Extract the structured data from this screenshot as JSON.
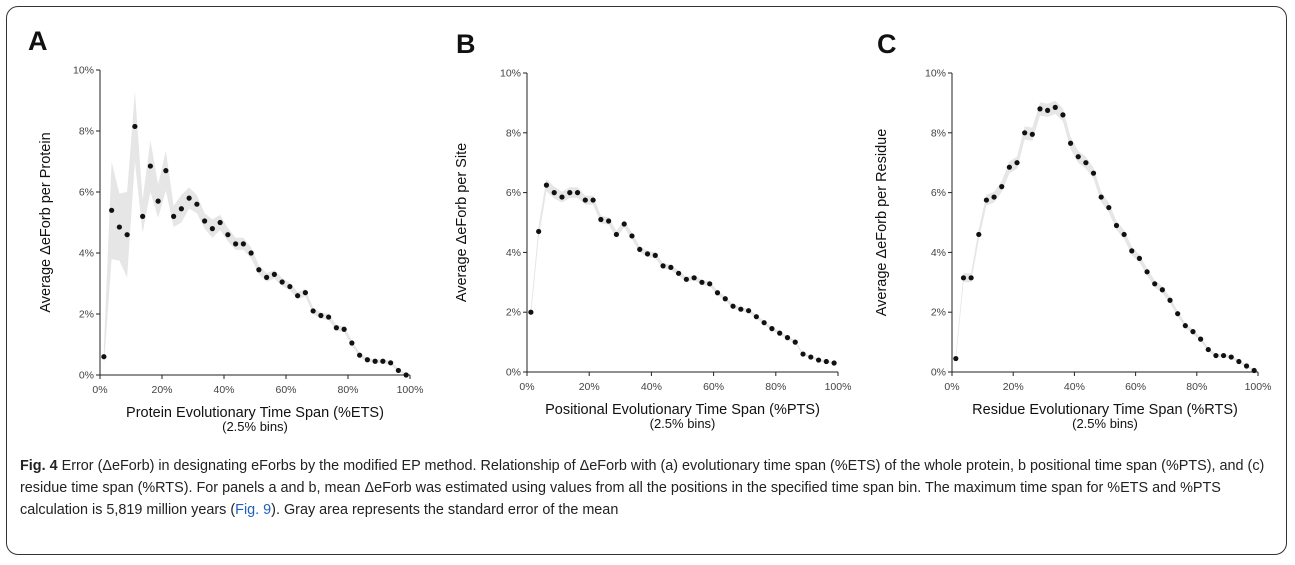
{
  "caption": {
    "label": "Fig. 4",
    "pre_link": " Error (ΔeForb) in designating eForbs by the modified EP method. Relationship of ΔeForb with (a) evolutionary time span (%ETS) of the whole protein, b positional time span (%PTS), and (c) residue time span (%RTS). For panels a and b, mean ΔeForb was estimated using values from all the positions in the specified time span bin. The maximum time span for %ETS and %PTS calculation is 5,819 million years (",
    "link_text": "Fig. 9",
    "post_link": "). Gray area represents the standard error of the mean"
  },
  "chart_data": [
    {
      "type": "scatter",
      "panel_label": "A",
      "xlabel": "Protein Evolutionary Time Span (%ETS)",
      "xlabel_sub": "(2.5% bins)",
      "ylabel": "Average ΔeForb per Protein",
      "xlim": [
        0,
        100
      ],
      "ylim": [
        0,
        10
      ],
      "x_ticks": [
        "0%",
        "20%",
        "40%",
        "60%",
        "80%",
        "100%"
      ],
      "y_ticks": [
        "0%",
        "2%",
        "4%",
        "6%",
        "8%",
        "10%"
      ],
      "x": [
        1.25,
        3.75,
        6.25,
        8.75,
        11.25,
        13.75,
        16.25,
        18.75,
        21.25,
        23.75,
        26.25,
        28.75,
        31.25,
        33.75,
        36.25,
        38.75,
        41.25,
        43.75,
        46.25,
        48.75,
        51.25,
        53.75,
        56.25,
        58.75,
        61.25,
        63.75,
        66.25,
        68.75,
        71.25,
        73.75,
        76.25,
        78.75,
        81.25,
        83.75,
        86.25,
        88.75,
        91.25,
        93.75,
        96.25,
        98.75
      ],
      "y": [
        0.6,
        5.4,
        4.85,
        4.6,
        8.15,
        5.2,
        6.85,
        5.7,
        6.7,
        5.2,
        5.45,
        5.8,
        5.6,
        5.05,
        4.8,
        5.0,
        4.6,
        4.3,
        4.3,
        4.0,
        3.45,
        3.2,
        3.3,
        3.05,
        2.9,
        2.6,
        2.7,
        2.1,
        1.95,
        1.9,
        1.55,
        1.5,
        1.05,
        0.65,
        0.5,
        0.45,
        0.45,
        0.4,
        0.15,
        0.0
      ],
      "se": [
        0.3,
        1.6,
        1.1,
        1.4,
        1.15,
        0.55,
        0.85,
        0.55,
        0.65,
        0.35,
        0.45,
        0.35,
        0.3,
        0.25,
        0.3,
        0.25,
        0.22,
        0.2,
        0.2,
        0.18,
        0.15,
        0.14,
        0.14,
        0.13,
        0.12,
        0.12,
        0.12,
        0.1,
        0.1,
        0.1,
        0.09,
        0.09,
        0.08,
        0.07,
        0.06,
        0.06,
        0.06,
        0.06,
        0.05,
        0.04
      ]
    },
    {
      "type": "scatter",
      "panel_label": "B",
      "xlabel": "Positional Evolutionary Time Span (%PTS)",
      "xlabel_sub": "(2.5% bins)",
      "ylabel": "Average ΔeForb per Site",
      "xlim": [
        0,
        100
      ],
      "ylim": [
        0,
        10
      ],
      "x_ticks": [
        "0%",
        "20%",
        "40%",
        "60%",
        "80%",
        "100%"
      ],
      "y_ticks": [
        "0%",
        "2%",
        "4%",
        "6%",
        "8%",
        "10%"
      ],
      "x": [
        1.25,
        3.75,
        6.25,
        8.75,
        11.25,
        13.75,
        16.25,
        18.75,
        21.25,
        23.75,
        26.25,
        28.75,
        31.25,
        33.75,
        36.25,
        38.75,
        41.25,
        43.75,
        46.25,
        48.75,
        51.25,
        53.75,
        56.25,
        58.75,
        61.25,
        63.75,
        66.25,
        68.75,
        71.25,
        73.75,
        76.25,
        78.75,
        81.25,
        83.75,
        86.25,
        88.75,
        91.25,
        93.75,
        96.25,
        98.75
      ],
      "y": [
        2.0,
        4.7,
        6.25,
        6.0,
        5.85,
        6.0,
        6.0,
        5.75,
        5.75,
        5.1,
        5.05,
        4.6,
        4.95,
        4.55,
        4.1,
        3.95,
        3.9,
        3.55,
        3.5,
        3.3,
        3.1,
        3.15,
        3.0,
        2.95,
        2.65,
        2.45,
        2.2,
        2.1,
        2.05,
        1.85,
        1.65,
        1.45,
        1.3,
        1.15,
        1.0,
        0.6,
        0.5,
        0.4,
        0.35,
        0.3
      ],
      "se": [
        0.15,
        0.2,
        0.2,
        0.2,
        0.18,
        0.18,
        0.18,
        0.15,
        0.15,
        0.13,
        0.12,
        0.12,
        0.12,
        0.11,
        0.1,
        0.1,
        0.1,
        0.09,
        0.09,
        0.09,
        0.08,
        0.08,
        0.08,
        0.08,
        0.07,
        0.07,
        0.07,
        0.06,
        0.06,
        0.06,
        0.06,
        0.05,
        0.05,
        0.05,
        0.05,
        0.04,
        0.04,
        0.04,
        0.04,
        0.03
      ]
    },
    {
      "type": "scatter",
      "panel_label": "C",
      "xlabel": "Residue Evolutionary Time Span (%RTS)",
      "xlabel_sub": "(2.5% bins)",
      "ylabel": "Average ΔeForb per Residue",
      "xlim": [
        0,
        100
      ],
      "ylim": [
        0,
        10
      ],
      "x_ticks": [
        "0%",
        "20%",
        "40%",
        "60%",
        "80%",
        "100%"
      ],
      "y_ticks": [
        "0%",
        "2%",
        "4%",
        "6%",
        "8%",
        "10%"
      ],
      "x": [
        1.25,
        3.75,
        6.25,
        8.75,
        11.25,
        13.75,
        16.25,
        18.75,
        21.25,
        23.75,
        26.25,
        28.75,
        31.25,
        33.75,
        36.25,
        38.75,
        41.25,
        43.75,
        46.25,
        48.75,
        51.25,
        53.75,
        56.25,
        58.75,
        61.25,
        63.75,
        66.25,
        68.75,
        71.25,
        73.75,
        76.25,
        78.75,
        81.25,
        83.75,
        86.25,
        88.75,
        91.25,
        93.75,
        96.25,
        98.75
      ],
      "y": [
        0.45,
        3.15,
        3.15,
        4.6,
        5.75,
        5.85,
        6.2,
        6.85,
        7.0,
        8.0,
        7.95,
        8.8,
        8.75,
        8.85,
        8.6,
        7.65,
        7.2,
        7.0,
        6.65,
        5.85,
        5.5,
        4.9,
        4.6,
        4.05,
        3.8,
        3.35,
        2.95,
        2.75,
        2.4,
        1.95,
        1.55,
        1.35,
        1.1,
        0.75,
        0.55,
        0.55,
        0.5,
        0.35,
        0.2,
        0.05
      ],
      "se": [
        0.12,
        0.15,
        0.15,
        0.18,
        0.18,
        0.18,
        0.18,
        0.2,
        0.2,
        0.22,
        0.22,
        0.22,
        0.22,
        0.22,
        0.22,
        0.2,
        0.2,
        0.2,
        0.18,
        0.17,
        0.16,
        0.15,
        0.15,
        0.14,
        0.13,
        0.12,
        0.12,
        0.11,
        0.1,
        0.09,
        0.08,
        0.08,
        0.07,
        0.06,
        0.05,
        0.05,
        0.05,
        0.04,
        0.04,
        0.03
      ]
    }
  ]
}
